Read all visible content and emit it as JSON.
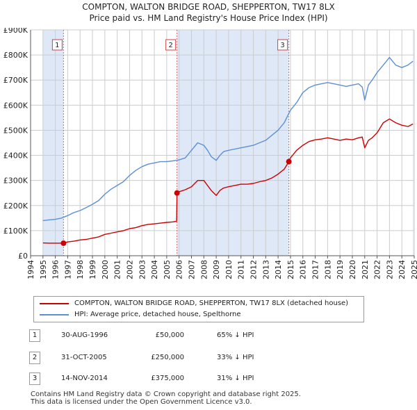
{
  "title_line1": "COMPTON, WALTON BRIDGE ROAD, SHEPPERTON, TW17 8LX",
  "title_line2": "Price paid vs. HM Land Registry's House Price Index (HPI)",
  "colors": {
    "property": "#cc0000",
    "hpi": "#5b8fd4",
    "shade": "#dfe8f7",
    "marker_line": "#e06666"
  },
  "legend": {
    "property_label": "COMPTON, WALTON BRIDGE ROAD, SHEPPERTON, TW17 8LX (detached house)",
    "hpi_label": "HPI: Average price, detached house, Spelthorne"
  },
  "sales": [
    {
      "num": "1",
      "date": "30-AUG-1996",
      "price": "£50,000",
      "hpi_diff": "65% ↓ HPI"
    },
    {
      "num": "2",
      "date": "31-OCT-2005",
      "price": "£250,000",
      "hpi_diff": "33% ↓ HPI"
    },
    {
      "num": "3",
      "date": "14-NOV-2014",
      "price": "£375,000",
      "hpi_diff": "31% ↓ HPI"
    }
  ],
  "footer_line1": "Contains HM Land Registry data © Crown copyright and database right 2025.",
  "footer_line2": "This data is licensed under the Open Government Licence v3.0.",
  "chart_data": {
    "type": "line",
    "title": "Price paid vs. HM Land Registry's House Price Index (HPI)",
    "xlabel": "",
    "ylabel": "",
    "xlim": [
      1994,
      2025
    ],
    "ylim": [
      0,
      900000
    ],
    "x_ticks": [
      "1994",
      "1995",
      "1996",
      "1997",
      "1998",
      "1999",
      "2000",
      "2001",
      "2002",
      "2003",
      "2004",
      "2005",
      "2006",
      "2007",
      "2008",
      "2009",
      "2010",
      "2011",
      "2012",
      "2013",
      "2014",
      "2015",
      "2016",
      "2017",
      "2018",
      "2019",
      "2020",
      "2021",
      "2022",
      "2023",
      "2024",
      "2025"
    ],
    "y_ticks": [
      {
        "value": 0,
        "label": "£0"
      },
      {
        "value": 100000,
        "label": "£100K"
      },
      {
        "value": 200000,
        "label": "£200K"
      },
      {
        "value": 300000,
        "label": "£300K"
      },
      {
        "value": 400000,
        "label": "£400K"
      },
      {
        "value": 500000,
        "label": "£500K"
      },
      {
        "value": 600000,
        "label": "£600K"
      },
      {
        "value": 700000,
        "label": "£700K"
      },
      {
        "value": 800000,
        "label": "£800K"
      },
      {
        "value": 900000,
        "label": "£900K"
      }
    ],
    "shaded_ranges": [
      [
        1995.0,
        1996.66
      ],
      [
        2005.83,
        2014.87
      ],
      [
        2024.9,
        2025.0
      ]
    ],
    "markers": [
      {
        "label": "1",
        "x": 1996.66,
        "y": 50000
      },
      {
        "label": "2",
        "x": 2005.83,
        "y": 250000
      },
      {
        "label": "3",
        "x": 2014.87,
        "y": 375000
      }
    ],
    "series": [
      {
        "name": "COMPTON, WALTON BRIDGE ROAD, SHEPPERTON, TW17 8LX (detached house)",
        "x": [
          1995.0,
          1995.5,
          1996.0,
          1996.66,
          1997.0,
          1997.5,
          1998.0,
          1998.5,
          1999.0,
          1999.5,
          2000.0,
          2000.5,
          2001.0,
          2001.5,
          2002.0,
          2002.5,
          2003.0,
          2003.5,
          2004.0,
          2004.5,
          2005.0,
          2005.5,
          2005.8,
          2005.83,
          2006.0,
          2006.5,
          2007.0,
          2007.5,
          2008.0,
          2008.3,
          2008.6,
          2009.0,
          2009.3,
          2009.6,
          2010.0,
          2010.5,
          2011.0,
          2011.5,
          2012.0,
          2012.5,
          2013.0,
          2013.5,
          2014.0,
          2014.5,
          2014.87,
          2015.0,
          2015.5,
          2016.0,
          2016.5,
          2017.0,
          2017.5,
          2018.0,
          2018.5,
          2019.0,
          2019.5,
          2020.0,
          2020.5,
          2020.8,
          2021.0,
          2021.1,
          2021.3,
          2021.6,
          2022.0,
          2022.5,
          2023.0,
          2023.5,
          2024.0,
          2024.5,
          2024.9
        ],
        "values": [
          51000,
          50000,
          50000,
          50000,
          55000,
          58000,
          63000,
          65000,
          70000,
          75000,
          85000,
          90000,
          95000,
          100000,
          108000,
          112000,
          120000,
          125000,
          127000,
          130000,
          133000,
          135000,
          137000,
          250000,
          255000,
          263000,
          275000,
          300000,
          300000,
          280000,
          260000,
          240000,
          260000,
          270000,
          275000,
          280000,
          285000,
          285000,
          288000,
          295000,
          300000,
          310000,
          325000,
          345000,
          375000,
          390000,
          420000,
          440000,
          455000,
          462000,
          465000,
          470000,
          465000,
          460000,
          465000,
          462000,
          470000,
          473000,
          430000,
          440000,
          460000,
          470000,
          490000,
          530000,
          545000,
          530000,
          520000,
          515000,
          525000
        ]
      },
      {
        "name": "HPI: Average price, detached house, Spelthorne",
        "x": [
          1995.0,
          1995.5,
          1996.0,
          1996.5,
          1997.0,
          1997.5,
          1998.0,
          1998.5,
          1999.0,
          1999.5,
          2000.0,
          2000.5,
          2001.0,
          2001.5,
          2002.0,
          2002.5,
          2003.0,
          2003.5,
          2004.0,
          2004.5,
          2005.0,
          2005.5,
          2006.0,
          2006.5,
          2007.0,
          2007.5,
          2008.0,
          2008.3,
          2008.6,
          2009.0,
          2009.3,
          2009.6,
          2010.0,
          2010.5,
          2011.0,
          2011.5,
          2012.0,
          2012.5,
          2013.0,
          2013.5,
          2014.0,
          2014.5,
          2015.0,
          2015.5,
          2016.0,
          2016.5,
          2017.0,
          2017.5,
          2018.0,
          2018.5,
          2019.0,
          2019.5,
          2020.0,
          2020.5,
          2020.8,
          2021.0,
          2021.1,
          2021.3,
          2021.6,
          2022.0,
          2022.5,
          2023.0,
          2023.5,
          2024.0,
          2024.5,
          2024.9
        ],
        "values": [
          140000,
          143000,
          145000,
          150000,
          160000,
          172000,
          180000,
          192000,
          205000,
          220000,
          245000,
          265000,
          280000,
          295000,
          320000,
          340000,
          355000,
          365000,
          370000,
          375000,
          375000,
          378000,
          382000,
          390000,
          420000,
          450000,
          440000,
          420000,
          395000,
          380000,
          400000,
          415000,
          420000,
          425000,
          430000,
          435000,
          440000,
          450000,
          460000,
          480000,
          500000,
          530000,
          580000,
          610000,
          650000,
          670000,
          680000,
          685000,
          690000,
          685000,
          680000,
          675000,
          680000,
          685000,
          672000,
          620000,
          640000,
          680000,
          700000,
          730000,
          760000,
          790000,
          760000,
          750000,
          760000,
          775000
        ]
      }
    ]
  }
}
